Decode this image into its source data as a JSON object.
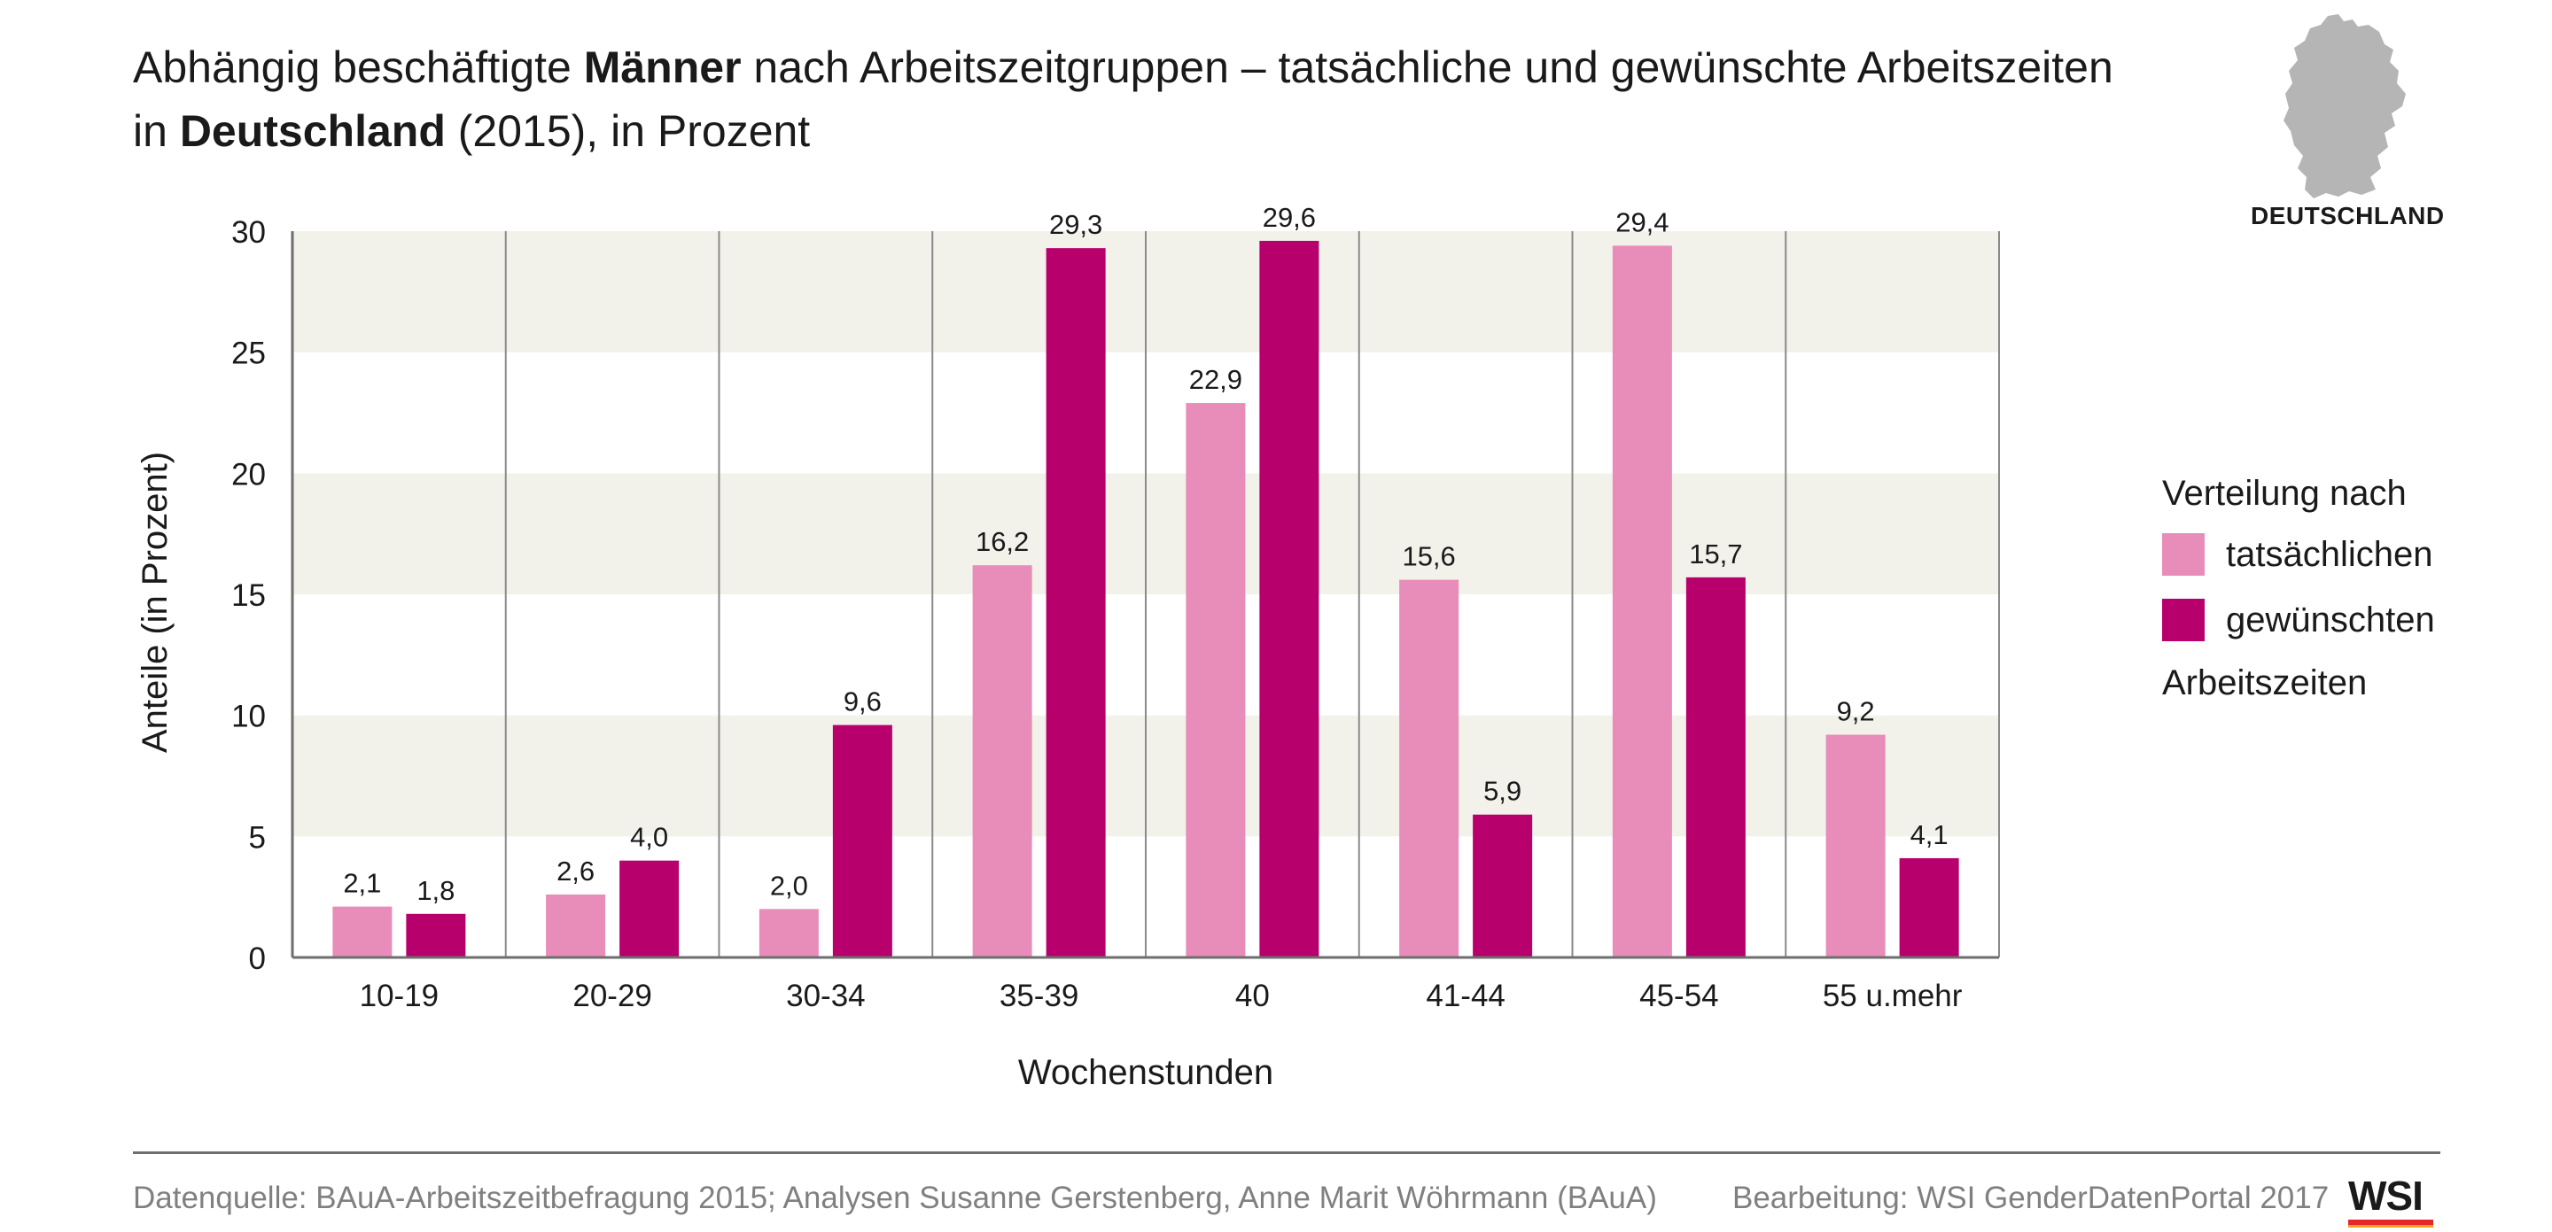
{
  "title": {
    "line1_pre": "Abhängig beschäftigte ",
    "line1_bold": "Männer",
    "line1_post": " nach Arbeitszeitgruppen – tatsächliche und gewünschte Arbeitszeiten",
    "line2_pre": "in ",
    "line2_bold": "Deutschland",
    "line2_post": " (2015), in Prozent"
  },
  "map": {
    "label": "DEUTSCHLAND",
    "icon": "germany-map-icon",
    "color": "#b5b5b5"
  },
  "legend": {
    "title": "Verteilung nach",
    "items": [
      {
        "label": "tatsächlichen",
        "color": "#e88cb9"
      },
      {
        "label": "gewünschten",
        "color": "#b8006c"
      }
    ],
    "footer": "Arbeitszeiten"
  },
  "chart_data": {
    "type": "bar",
    "categories": [
      "10-19",
      "20-29",
      "30-34",
      "35-39",
      "40",
      "41-44",
      "45-54",
      "55 u.mehr"
    ],
    "series": [
      {
        "name": "tatsächlichen",
        "color": "#e88cb9",
        "values": [
          2.1,
          2.6,
          2.0,
          16.2,
          22.9,
          15.6,
          29.4,
          9.2
        ],
        "labels": [
          "2,1",
          "2,6",
          "2,0",
          "16,2",
          "22,9",
          "15,6",
          "29,4",
          "9,2"
        ]
      },
      {
        "name": "gewünschten",
        "color": "#b8006c",
        "values": [
          1.8,
          4.0,
          9.6,
          29.3,
          29.6,
          5.9,
          15.7,
          4.1
        ],
        "labels": [
          "1,8",
          "4,0",
          "9,6",
          "29,3",
          "29,6",
          "5,9",
          "15,7",
          "4,1"
        ]
      }
    ],
    "xlabel": "Wochenstunden",
    "ylabel": "Anteile (in Prozent)",
    "ylim": [
      0,
      30
    ],
    "yticks": [
      0,
      5,
      10,
      15,
      20,
      25,
      30
    ],
    "band_color": "#f2f1ea",
    "grid": false,
    "legend_position": "right"
  },
  "footer": {
    "source": "Datenquelle: BAuA-Arbeitszeitbefragung 2015; Analysen Susanne Gerstenberg, Anne Marit Wöhrmann (BAuA)",
    "credit": "Bearbeitung: WSI GenderDatenPortal 2017",
    "logo_text": "WSI"
  }
}
